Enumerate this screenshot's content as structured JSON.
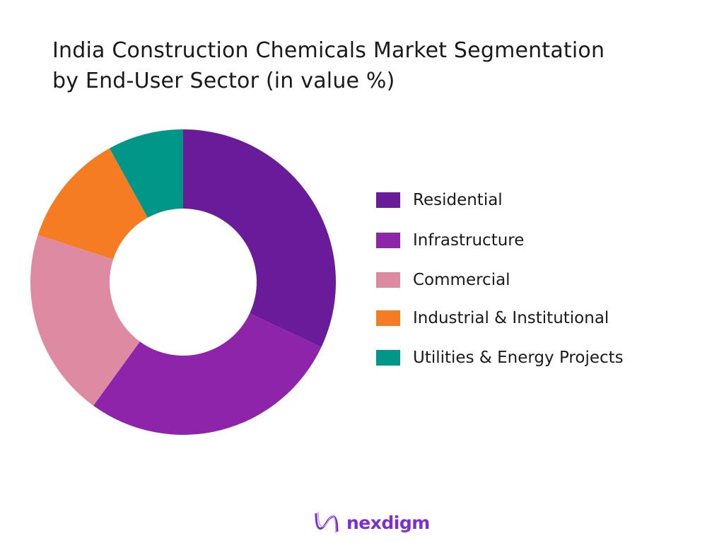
{
  "chart_data": {
    "type": "pie",
    "variant": "donut",
    "title": "India Construction Chemicals Market Segmentation by End-User Sector (in value %)",
    "title_lines": [
      "India Construction Chemicals Market Segmentation",
      "by End-User Sector (in value %)"
    ],
    "categories": [
      "Residential",
      "Infrastructure",
      "Commercial",
      "Industrial & Institutional",
      "Utilities & Energy Projects"
    ],
    "values": [
      32,
      28,
      20,
      12,
      8
    ],
    "colors": [
      "#6a1b9a",
      "#8e24aa",
      "#df8aa3",
      "#f57c22",
      "#009688"
    ],
    "legend_position": "right",
    "start_angle": "top, clockwise"
  },
  "branding": {
    "logo_text": "nexdigm",
    "logo_color": "#7b2fd0"
  }
}
